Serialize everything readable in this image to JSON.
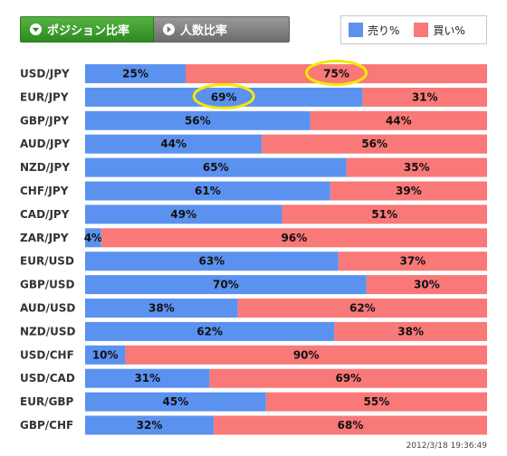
{
  "tabs": [
    {
      "label": "ポジション比率",
      "active": true
    },
    {
      "label": "人数比率",
      "active": false
    }
  ],
  "legend": {
    "sell_label": "売り%",
    "buy_label": "買い%"
  },
  "colors": {
    "sell": "#5b92f0",
    "buy": "#f97878",
    "highlight": "#f4e800"
  },
  "chart_data": {
    "type": "bar",
    "stacked": true,
    "orientation": "horizontal",
    "categories": [
      "USD/JPY",
      "EUR/JPY",
      "GBP/JPY",
      "AUD/JPY",
      "NZD/JPY",
      "CHF/JPY",
      "CAD/JPY",
      "ZAR/JPY",
      "EUR/USD",
      "GBP/USD",
      "AUD/USD",
      "NZD/USD",
      "USD/CHF",
      "USD/CAD",
      "EUR/GBP",
      "GBP/CHF"
    ],
    "series": [
      {
        "name": "売り%",
        "values": [
          25,
          69,
          56,
          44,
          65,
          61,
          49,
          4,
          63,
          70,
          38,
          62,
          10,
          31,
          45,
          32
        ]
      },
      {
        "name": "買い%",
        "values": [
          75,
          31,
          44,
          56,
          35,
          39,
          51,
          96,
          37,
          30,
          62,
          38,
          90,
          69,
          55,
          68
        ]
      }
    ],
    "xlim": [
      0,
      100
    ],
    "value_suffix": "%",
    "highlights": [
      {
        "category": "USD/JPY",
        "series": "買い%"
      },
      {
        "category": "EUR/JPY",
        "series": "売り%"
      }
    ]
  },
  "timestamp": "2012/3/18 19:36:49"
}
